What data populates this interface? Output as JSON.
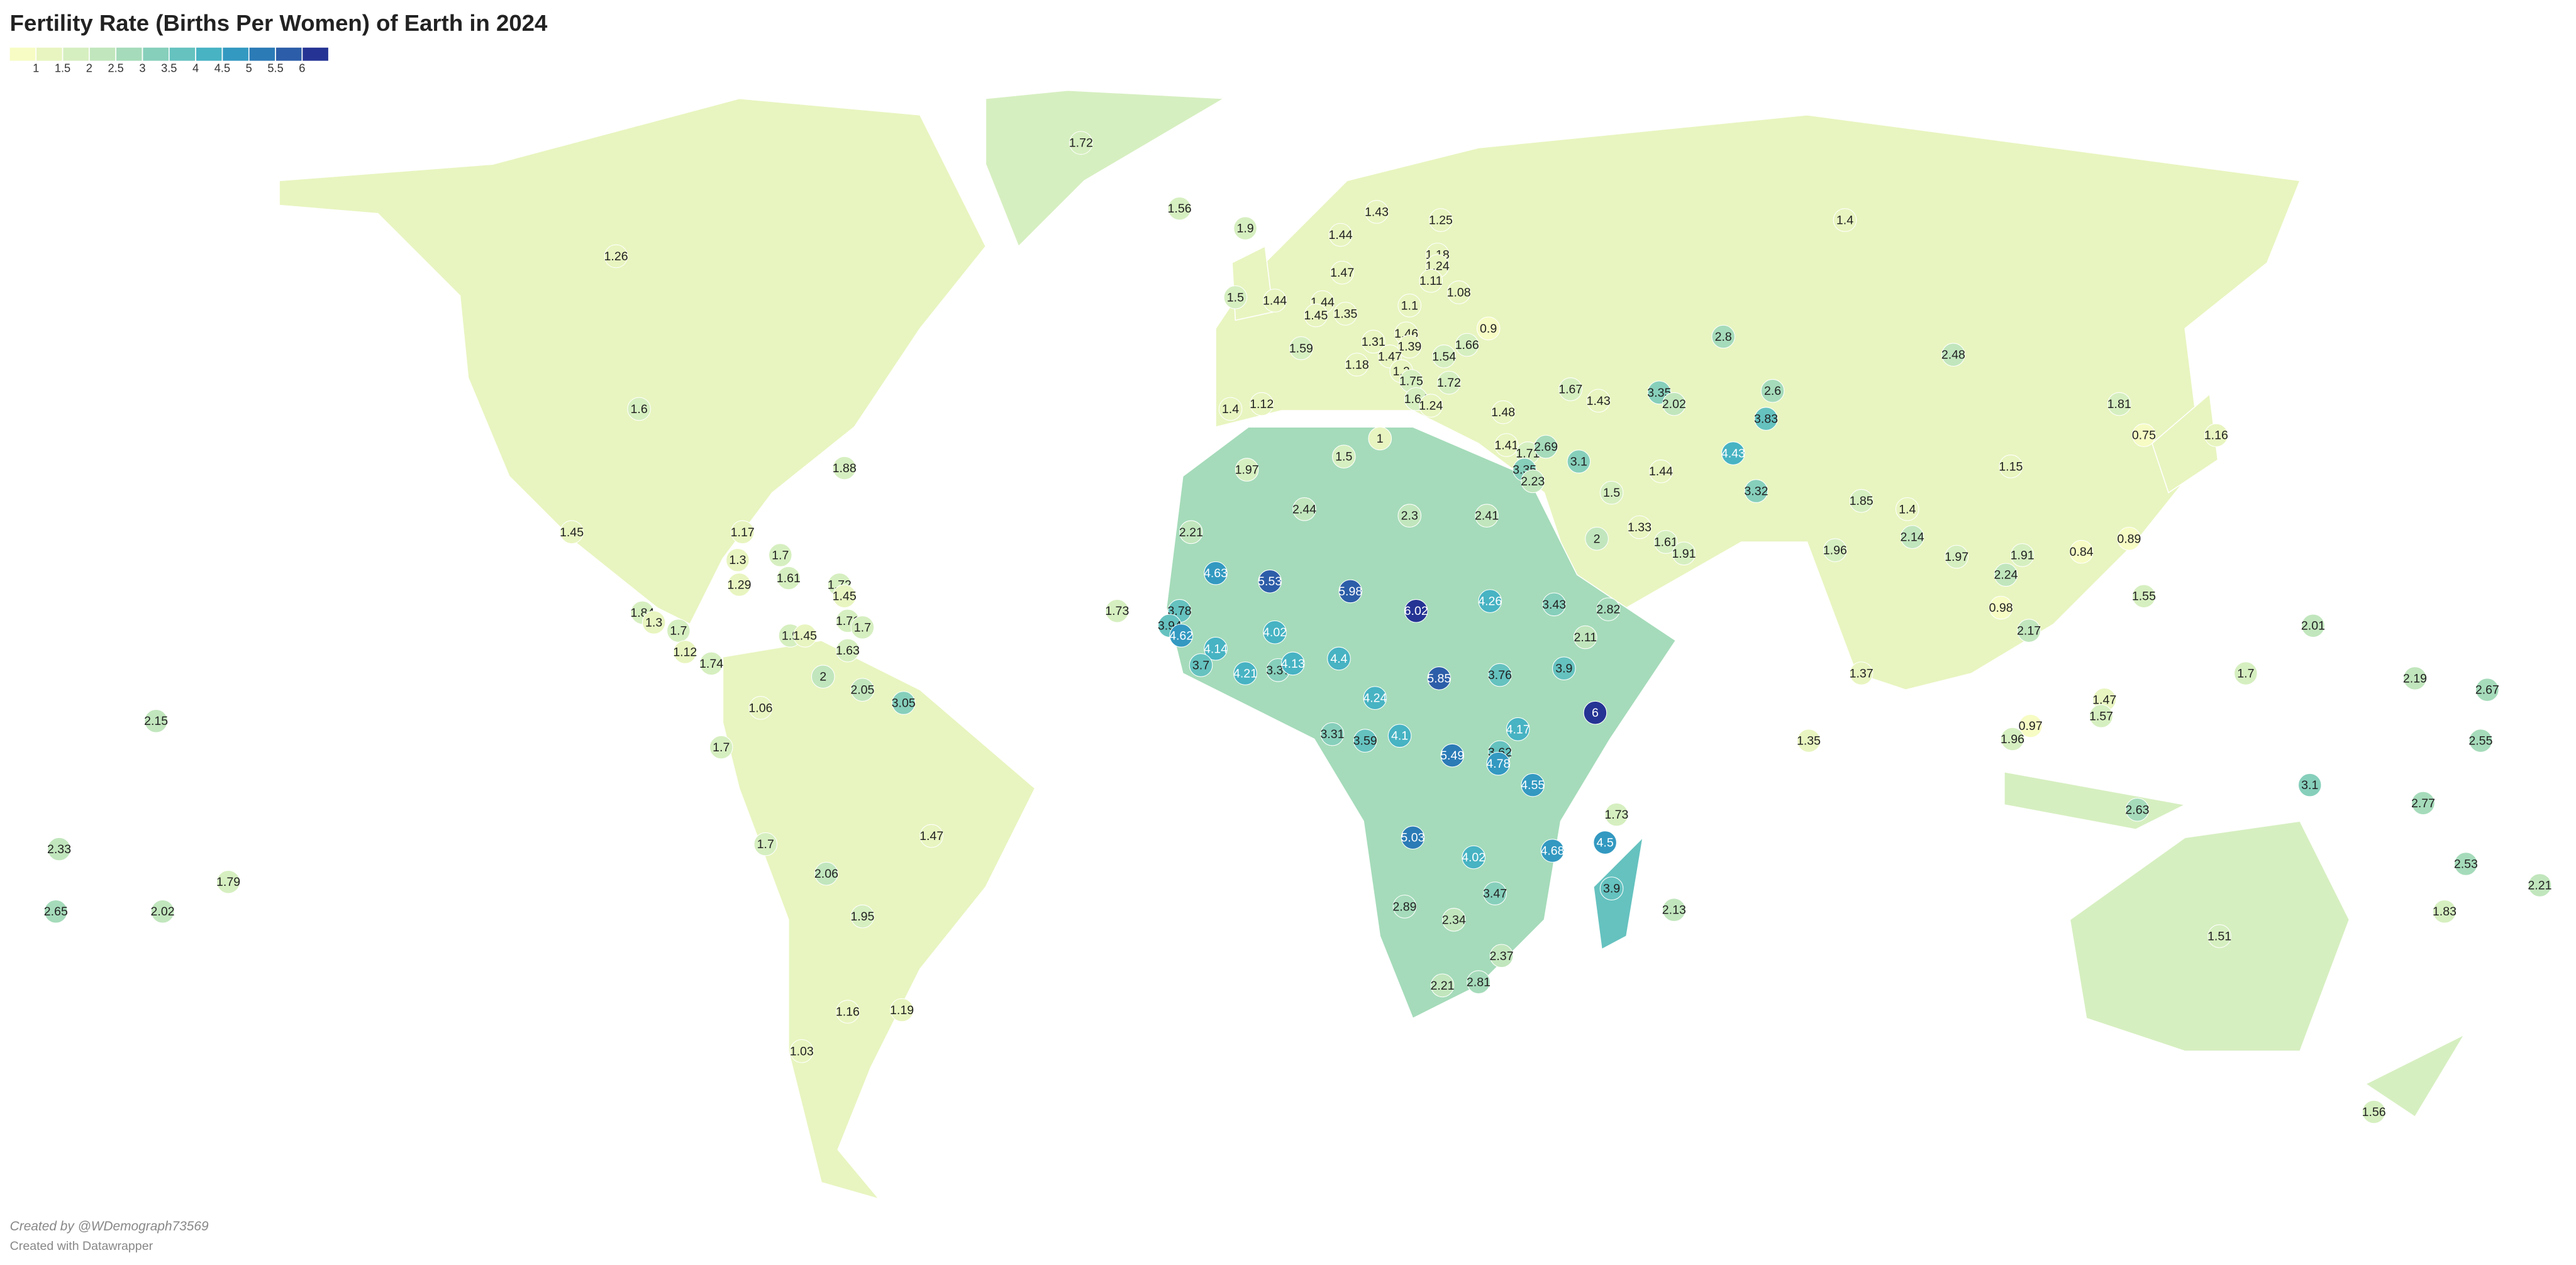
{
  "chart_data": {
    "type": "choropleth",
    "title": "Fertility Rate (Births Per Women) of Earth in 2024",
    "colors": [
      "#f7fcc4",
      "#e8f5c0",
      "#d6efc0",
      "#c1e6bd",
      "#a5dbba",
      "#86cfbb",
      "#65c2bf",
      "#47b3c3",
      "#3399c1",
      "#2b7bb6",
      "#2c5da8",
      "#253494"
    ],
    "ticks": [
      1,
      1.5,
      2,
      2.5,
      3,
      3.5,
      4,
      4.5,
      5,
      5.5,
      6
    ],
    "values": [
      1.72,
      1.56,
      1.9,
      1.43,
      1.25,
      1.44,
      1.26,
      1.4,
      1.18,
      1.24,
      1.47,
      1.11,
      1.08,
      1.5,
      1.44,
      1.44,
      1.45,
      1.35,
      1.1,
      0.9,
      1.31,
      1.46,
      1.39,
      1.66,
      1.59,
      1.47,
      1.54,
      2.8,
      2.48,
      1.18,
      1.2,
      1.75,
      1.72,
      1.67,
      1.43,
      3.35,
      2.6,
      2.02,
      1.64,
      1.24,
      1.6,
      1.4,
      1.12,
      1.48,
      3.83,
      1.81,
      0.75,
      1.16,
      1,
      1.41,
      1.71,
      2.69,
      3.1,
      4.43,
      1.5,
      1.88,
      1.97,
      3.35,
      2.23,
      1.44,
      1.15,
      1.5,
      3.32,
      2.44,
      2.3,
      2.41,
      1.85,
      1.4,
      1.33,
      1.45,
      1.17,
      2.21,
      2,
      2.14,
      1.61,
      0.89,
      1.91,
      1.96,
      1.97,
      1.91,
      0.84,
      1.7,
      1.3,
      4.63,
      5.53,
      5.98,
      2.24,
      1.29,
      1.61,
      1.72,
      1.45,
      4.26,
      3.43,
      2.82,
      6.02,
      1.55,
      0.98,
      1.84,
      1.3,
      1.73,
      3.78,
      1.71,
      1.7,
      1.7,
      3.94,
      2.01,
      4.62,
      4.02,
      1.9,
      1.45,
      1.63,
      2.11,
      2.17,
      1.12,
      4.14,
      1.74,
      3.7,
      4.21,
      3.37,
      4.13,
      4.4,
      5.85,
      3.76,
      3.9,
      2,
      1.7,
      2.19,
      2.67,
      2.05,
      4.24,
      1.37,
      3.05,
      1.06,
      1.47,
      1.57,
      6,
      0.97,
      2.15,
      1.96,
      3.31,
      3.59,
      4.1,
      4.17,
      1.35,
      2.55,
      1.7,
      3.62,
      4.78,
      5.49,
      4.55,
      2.63,
      1.73,
      3.1,
      2.77,
      1.47,
      5.03,
      4.5,
      1.7,
      2.33,
      4.68,
      4.02,
      2.53,
      2.06,
      1.79,
      2.21,
      3.47,
      3.9,
      1.95,
      2.13,
      1.83,
      2.65,
      2.02,
      2.89,
      2.34,
      1.51,
      2.37,
      2.21,
      2.81,
      1.16,
      1.19,
      1.03,
      1.56
    ],
    "credit": "Created by @WDemograph73569",
    "note": "Created with Datawrapper"
  }
}
